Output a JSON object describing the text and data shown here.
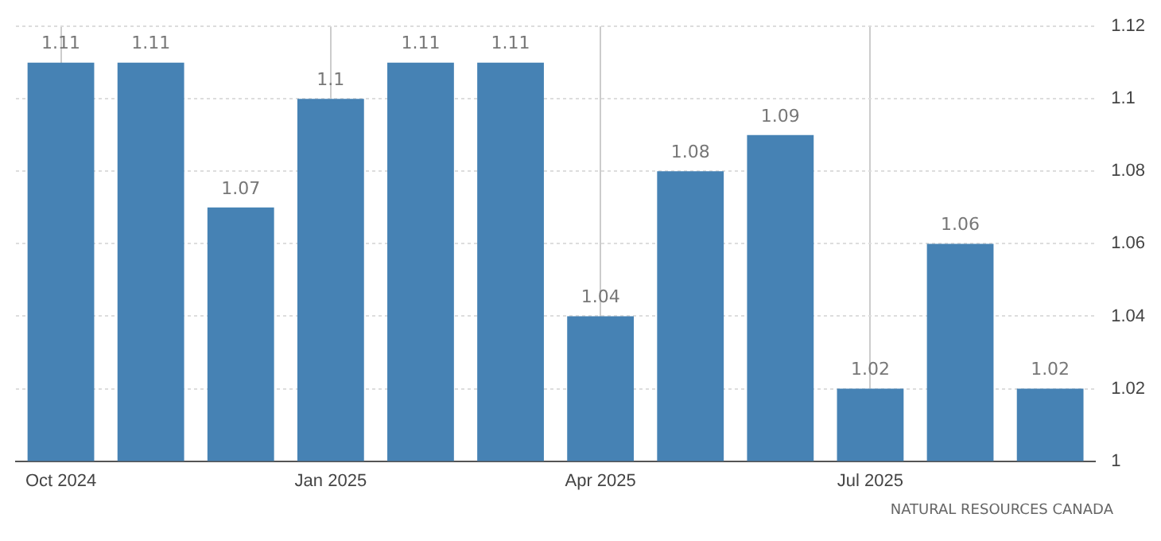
{
  "chart_data": {
    "type": "bar",
    "categories": [
      "Oct 2024",
      null,
      null,
      "Jan 2025",
      null,
      null,
      "Apr 2025",
      null,
      null,
      "Jul 2025",
      null,
      null
    ],
    "values": [
      1.11,
      1.11,
      1.07,
      1.1,
      1.11,
      1.11,
      1.04,
      1.08,
      1.09,
      1.02,
      1.06,
      1.02
    ],
    "color": "#4682b4",
    "ylim": [
      1,
      1.12
    ],
    "yticks": [
      1,
      1.02,
      1.04,
      1.06,
      1.08,
      1.1,
      1.12
    ],
    "grid": true,
    "data_labels": true,
    "annotations": [
      "NATURAL RESOURCES CANADA"
    ]
  }
}
